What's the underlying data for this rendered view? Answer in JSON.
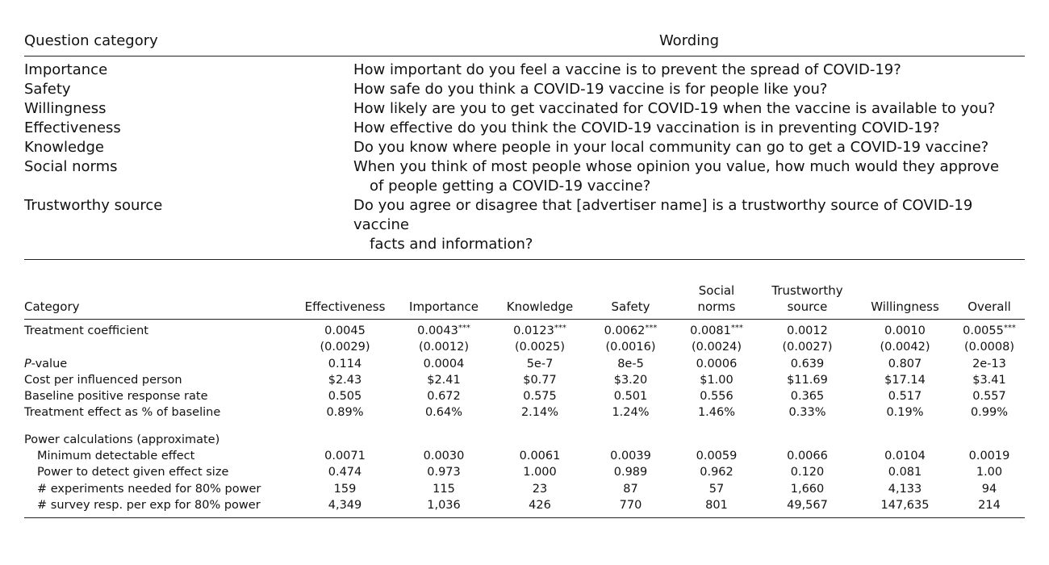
{
  "table1": {
    "headers": {
      "category": "Question category",
      "wording": "Wording"
    },
    "rows": [
      {
        "category": "Importance",
        "lines": [
          "How important do you feel a vaccine is to prevent the spread of COVID-19?"
        ]
      },
      {
        "category": "Safety",
        "lines": [
          "How safe do you think a COVID-19 vaccine is for people like you?"
        ]
      },
      {
        "category": "Willingness",
        "lines": [
          "How likely are you to get vaccinated for COVID-19 when the vaccine is available to you?"
        ]
      },
      {
        "category": "Effectiveness",
        "lines": [
          "How effective do you think the COVID-19 vaccination is in preventing COVID-19?"
        ]
      },
      {
        "category": "Knowledge",
        "lines": [
          "Do you know where people in your local community can go to get a COVID-19 vaccine?"
        ]
      },
      {
        "category": "Social norms",
        "lines": [
          "When you think of most people whose opinion you value, how much would they approve",
          "of people getting a COVID-19 vaccine?"
        ]
      },
      {
        "category": "Trustworthy source",
        "lines": [
          "Do you agree or disagree that [advertiser name] is a trustworthy source of COVID-19 vaccine",
          "facts and information?"
        ]
      }
    ]
  },
  "table2": {
    "headers": {
      "category": "Category",
      "columns": [
        {
          "lines": [
            "Effectiveness"
          ]
        },
        {
          "lines": [
            "Importance"
          ]
        },
        {
          "lines": [
            "Knowledge"
          ]
        },
        {
          "lines": [
            "Safety"
          ]
        },
        {
          "lines": [
            "Social",
            "norms"
          ]
        },
        {
          "lines": [
            "Trustworthy",
            "source"
          ]
        },
        {
          "lines": [
            "Willingness"
          ]
        },
        {
          "lines": [
            "Overall"
          ]
        }
      ]
    },
    "rows": [
      {
        "label": "Treatment coefficient",
        "values": [
          "0.0045",
          "0.0043",
          "0.0123",
          "0.0062",
          "0.0081",
          "0.0012",
          "0.0010",
          "0.0055"
        ],
        "stars": [
          "",
          "***",
          "***",
          "***",
          "***",
          "",
          "",
          "***"
        ]
      },
      {
        "label": "",
        "values": [
          "(0.0029)",
          "(0.0012)",
          "(0.0025)",
          "(0.0016)",
          "(0.0024)",
          "(0.0027)",
          "(0.0042)",
          "(0.0008)"
        ]
      },
      {
        "label": "P-value",
        "label_main": "-value",
        "label_italic": "P",
        "values": [
          "0.114",
          "0.0004",
          "5e-7",
          "8e-5",
          "0.0006",
          "0.639",
          "0.807",
          "2e-13"
        ]
      },
      {
        "label": "Cost per influenced person",
        "values": [
          "$2.43",
          "$2.41",
          "$0.77",
          "$3.20",
          "$1.00",
          "$11.69",
          "$17.14",
          "$3.41"
        ]
      },
      {
        "label": "Baseline positive response rate",
        "values": [
          "0.505",
          "0.672",
          "0.575",
          "0.501",
          "0.556",
          "0.365",
          "0.517",
          "0.557"
        ]
      },
      {
        "label": "Treatment effect as % of baseline",
        "values": [
          "0.89%",
          "0.64%",
          "2.14%",
          "1.24%",
          "1.46%",
          "0.33%",
          "0.19%",
          "0.99%"
        ]
      }
    ],
    "power_section": {
      "title": "Power calculations (approximate)",
      "rows": [
        {
          "label": "Minimum detectable effect",
          "values": [
            "0.0071",
            "0.0030",
            "0.0061",
            "0.0039",
            "0.0059",
            "0.0066",
            "0.0104",
            "0.0019"
          ]
        },
        {
          "label": "Power to detect given effect size",
          "values": [
            "0.474",
            "0.973",
            "1.000",
            "0.989",
            "0.962",
            "0.120",
            "0.081",
            "1.00"
          ]
        },
        {
          "label": "# experiments needed for 80% power",
          "values": [
            "159",
            "115",
            "23",
            "87",
            "57",
            "1,660",
            "4,133",
            "94"
          ]
        },
        {
          "label": "# survey resp. per exp for 80% power",
          "values": [
            "4,349",
            "1,036",
            "426",
            "770",
            "801",
            "49,567",
            "147,635",
            "214"
          ]
        }
      ]
    }
  }
}
